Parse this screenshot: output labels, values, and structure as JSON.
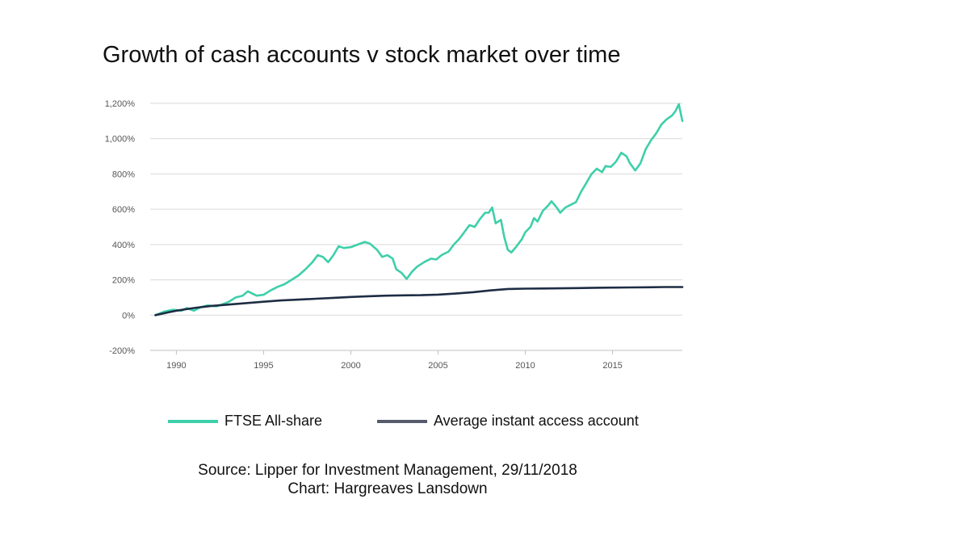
{
  "chart_data": {
    "type": "line",
    "title": "Growth of cash accounts v stock market over time",
    "xlabel": "",
    "ylabel": "",
    "xlim": [
      1988.5,
      2019.0
    ],
    "ylim": [
      -200,
      1200
    ],
    "x_ticks": [
      1990,
      1995,
      2000,
      2005,
      2010,
      2015
    ],
    "x_tick_labels": [
      "1990",
      "1995",
      "2000",
      "2005",
      "2010",
      "2015"
    ],
    "y_ticks": [
      -200,
      0,
      200,
      400,
      600,
      800,
      1000,
      1200
    ],
    "y_tick_labels": [
      "-200%",
      "0%",
      "200%",
      "400%",
      "600%",
      "800%",
      "1,000%",
      "1,200%"
    ],
    "grid": true,
    "legend_position": "bottom",
    "series": [
      {
        "name": "FTSE All-share",
        "color": "#3ecfaa",
        "points": [
          [
            1988.8,
            0
          ],
          [
            1989.3,
            20
          ],
          [
            1989.8,
            30
          ],
          [
            1990.3,
            25
          ],
          [
            1990.6,
            40
          ],
          [
            1991.0,
            25
          ],
          [
            1991.4,
            45
          ],
          [
            1991.8,
            55
          ],
          [
            1992.3,
            50
          ],
          [
            1992.6,
            60
          ],
          [
            1993.0,
            75
          ],
          [
            1993.4,
            100
          ],
          [
            1993.8,
            110
          ],
          [
            1994.1,
            135
          ],
          [
            1994.6,
            110
          ],
          [
            1995.0,
            115
          ],
          [
            1995.4,
            140
          ],
          [
            1995.8,
            160
          ],
          [
            1996.2,
            175
          ],
          [
            1996.6,
            200
          ],
          [
            1997.0,
            225
          ],
          [
            1997.4,
            260
          ],
          [
            1997.8,
            300
          ],
          [
            1998.1,
            340
          ],
          [
            1998.4,
            330
          ],
          [
            1998.7,
            300
          ],
          [
            1999.0,
            340
          ],
          [
            1999.3,
            390
          ],
          [
            1999.6,
            380
          ],
          [
            2000.0,
            385
          ],
          [
            2000.4,
            400
          ],
          [
            2000.8,
            415
          ],
          [
            2001.1,
            405
          ],
          [
            2001.5,
            370
          ],
          [
            2001.8,
            330
          ],
          [
            2002.1,
            340
          ],
          [
            2002.4,
            320
          ],
          [
            2002.6,
            260
          ],
          [
            2002.9,
            240
          ],
          [
            2003.2,
            205
          ],
          [
            2003.5,
            245
          ],
          [
            2003.8,
            275
          ],
          [
            2004.2,
            300
          ],
          [
            2004.6,
            320
          ],
          [
            2004.9,
            315
          ],
          [
            2005.2,
            340
          ],
          [
            2005.6,
            360
          ],
          [
            2005.9,
            400
          ],
          [
            2006.2,
            430
          ],
          [
            2006.5,
            470
          ],
          [
            2006.8,
            510
          ],
          [
            2007.1,
            500
          ],
          [
            2007.4,
            545
          ],
          [
            2007.7,
            580
          ],
          [
            2007.9,
            580
          ],
          [
            2008.1,
            610
          ],
          [
            2008.3,
            520
          ],
          [
            2008.6,
            540
          ],
          [
            2008.8,
            440
          ],
          [
            2009.0,
            370
          ],
          [
            2009.2,
            355
          ],
          [
            2009.5,
            390
          ],
          [
            2009.8,
            430
          ],
          [
            2010.0,
            470
          ],
          [
            2010.3,
            500
          ],
          [
            2010.5,
            550
          ],
          [
            2010.7,
            530
          ],
          [
            2011.0,
            590
          ],
          [
            2011.3,
            620
          ],
          [
            2011.5,
            645
          ],
          [
            2011.8,
            610
          ],
          [
            2012.0,
            580
          ],
          [
            2012.3,
            610
          ],
          [
            2012.6,
            625
          ],
          [
            2012.9,
            640
          ],
          [
            2013.2,
            700
          ],
          [
            2013.5,
            750
          ],
          [
            2013.8,
            800
          ],
          [
            2014.1,
            830
          ],
          [
            2014.4,
            810
          ],
          [
            2014.6,
            845
          ],
          [
            2014.9,
            840
          ],
          [
            2015.2,
            870
          ],
          [
            2015.5,
            920
          ],
          [
            2015.8,
            900
          ],
          [
            2016.0,
            860
          ],
          [
            2016.3,
            820
          ],
          [
            2016.6,
            860
          ],
          [
            2016.9,
            940
          ],
          [
            2017.2,
            990
          ],
          [
            2017.5,
            1030
          ],
          [
            2017.8,
            1080
          ],
          [
            2018.1,
            1110
          ],
          [
            2018.4,
            1130
          ],
          [
            2018.6,
            1155
          ],
          [
            2018.8,
            1195
          ],
          [
            2019.0,
            1100
          ]
        ]
      },
      {
        "name": "Average instant access account",
        "color": "#1e2d44",
        "points": [
          [
            1988.8,
            0
          ],
          [
            1989.5,
            15
          ],
          [
            1990.0,
            25
          ],
          [
            1991.0,
            40
          ],
          [
            1992.0,
            52
          ],
          [
            1993.0,
            60
          ],
          [
            1994.0,
            68
          ],
          [
            1995.0,
            76
          ],
          [
            1996.0,
            83
          ],
          [
            1997.0,
            88
          ],
          [
            1998.0,
            93
          ],
          [
            1999.0,
            98
          ],
          [
            2000.0,
            103
          ],
          [
            2001.0,
            107
          ],
          [
            2002.0,
            110
          ],
          [
            2003.0,
            112
          ],
          [
            2004.0,
            113
          ],
          [
            2005.0,
            116
          ],
          [
            2006.0,
            122
          ],
          [
            2007.0,
            130
          ],
          [
            2008.0,
            140
          ],
          [
            2009.0,
            148
          ],
          [
            2010.0,
            150
          ],
          [
            2011.0,
            151
          ],
          [
            2012.0,
            152
          ],
          [
            2013.0,
            153
          ],
          [
            2014.0,
            155
          ],
          [
            2015.0,
            156
          ],
          [
            2016.0,
            157
          ],
          [
            2017.0,
            158
          ],
          [
            2018.0,
            159
          ],
          [
            2019.0,
            159
          ]
        ]
      }
    ]
  },
  "source_line": "Source: Lipper for Investment Management, 29/11/2018",
  "chart_credit": "Chart: Hargreaves Lansdown"
}
